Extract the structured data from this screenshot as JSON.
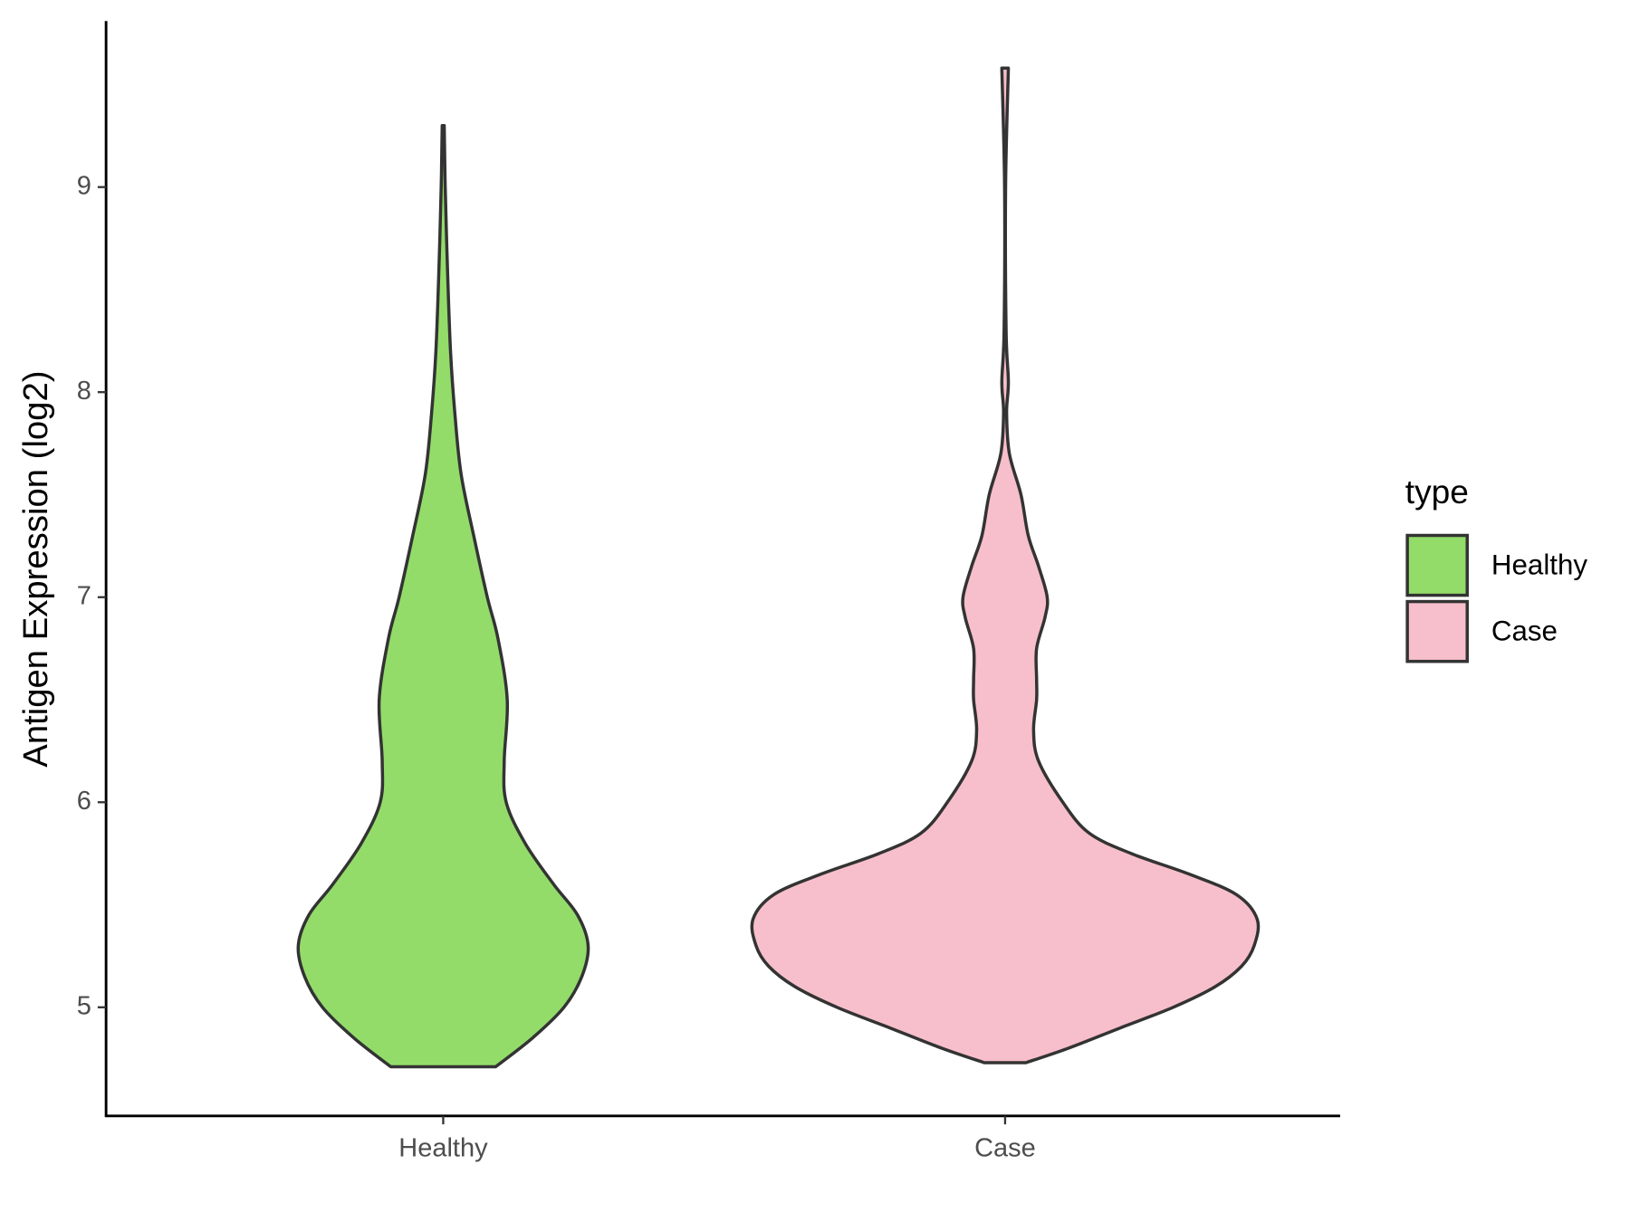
{
  "chart_data": {
    "type": "violin",
    "y_label": "Antigen Expression (log2)",
    "categories": [
      "Healthy",
      "Case"
    ],
    "legend_title": "type",
    "legend_position": "right",
    "ylim": [
      4.47,
      9.81
    ],
    "yticks": [
      5,
      6,
      7,
      8,
      9
    ],
    "grid": false,
    "series": [
      {
        "name": "Healthy",
        "color": "#93dc6a",
        "y": [
          4.71,
          4.85,
          5.0,
          5.15,
          5.3,
          5.45,
          5.6,
          5.8,
          6.0,
          6.2,
          6.5,
          6.8,
          7.0,
          7.3,
          7.6,
          7.9,
          8.2,
          8.6,
          9.0,
          9.3
        ],
        "width": [
          0.208,
          0.354,
          0.479,
          0.55,
          0.575,
          0.533,
          0.438,
          0.325,
          0.25,
          0.242,
          0.254,
          0.217,
          0.175,
          0.121,
          0.071,
          0.046,
          0.029,
          0.017,
          0.008,
          0.004
        ]
      },
      {
        "name": "Case",
        "color": "#f7bfcb",
        "y": [
          4.73,
          4.8,
          4.9,
          5.0,
          5.1,
          5.2,
          5.3,
          5.43,
          5.55,
          5.65,
          5.75,
          5.85,
          6.0,
          6.2,
          6.35,
          6.5,
          6.6,
          6.75,
          6.9,
          7.0,
          7.15,
          7.3,
          7.5,
          7.7,
          7.9,
          8.05,
          8.3,
          9.0,
          9.58
        ],
        "width": [
          0.083,
          0.25,
          0.458,
          0.667,
          0.833,
          0.938,
          0.988,
          1,
          0.917,
          0.729,
          0.5,
          0.333,
          0.229,
          0.133,
          0.113,
          0.125,
          0.125,
          0.125,
          0.158,
          0.167,
          0.133,
          0.092,
          0.063,
          0.017,
          0.006,
          0.013,
          0.004,
          0.002,
          0.013
        ]
      }
    ]
  }
}
